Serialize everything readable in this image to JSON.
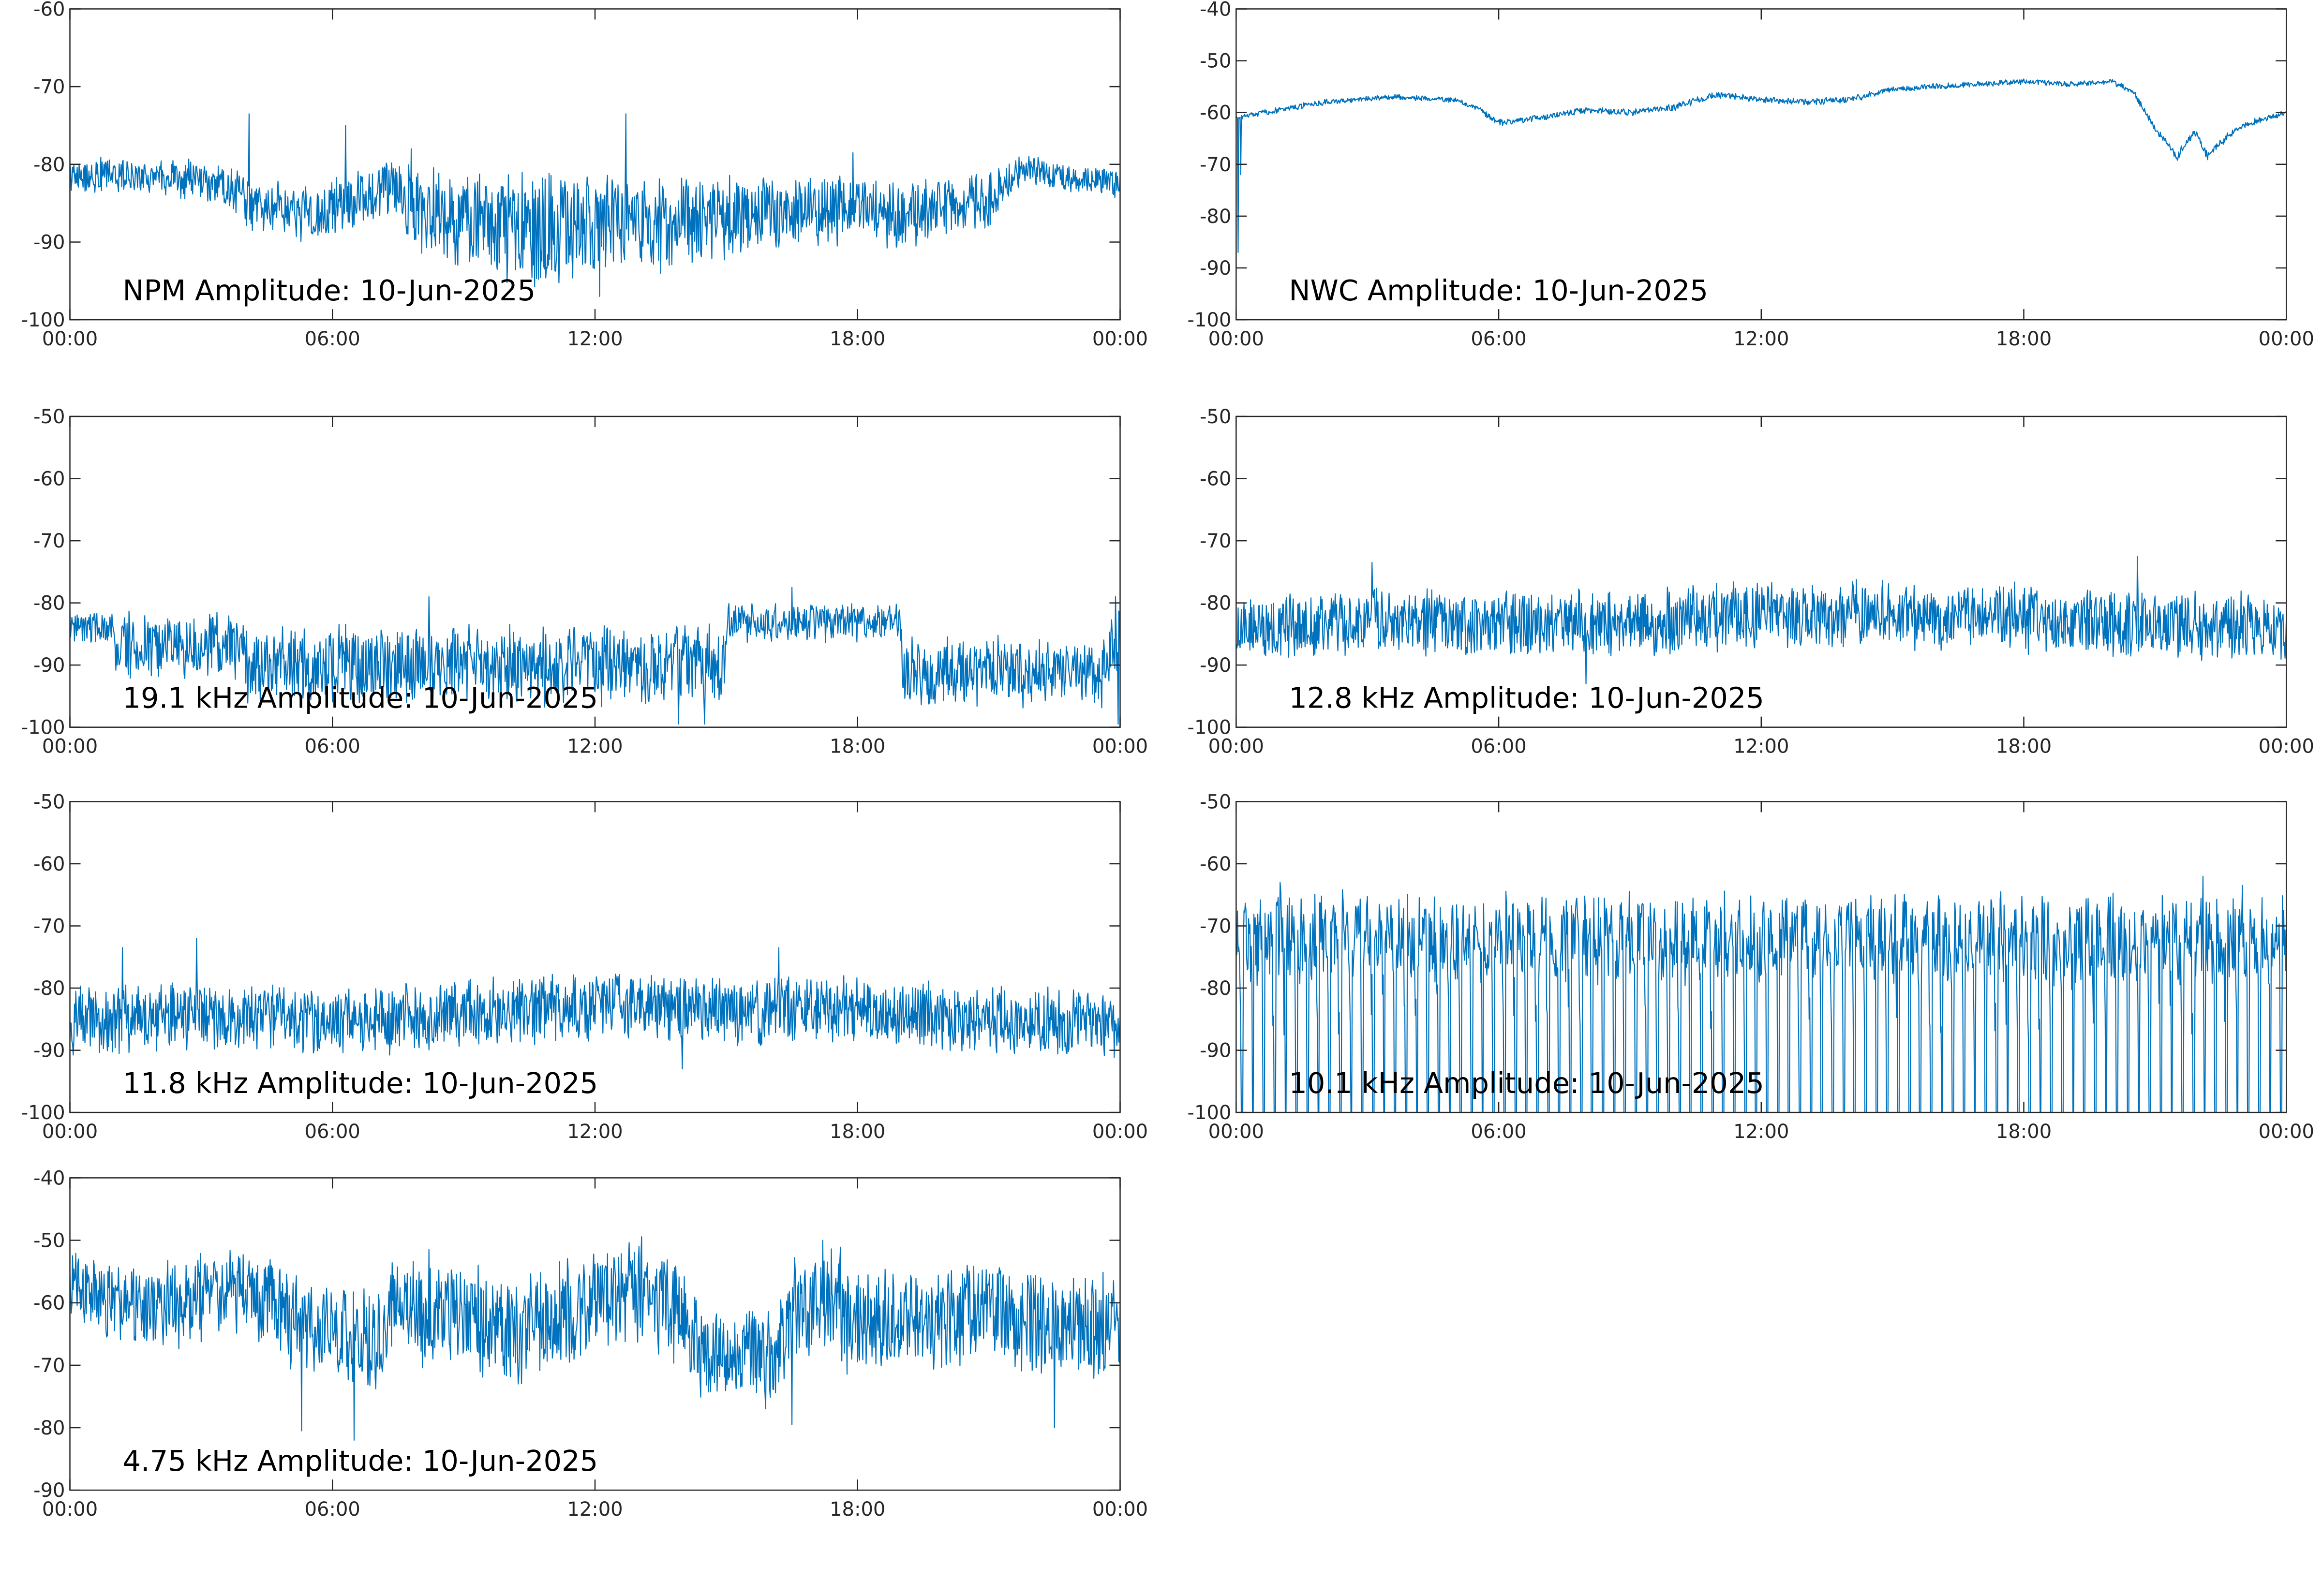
{
  "series_color": "#0072BD",
  "chart_data": [
    {
      "type": "line",
      "title": "NPM Amplitude: 10-Jun-2025",
      "xlabel": "",
      "ylabel": "",
      "x_ticks": [
        "00:00",
        "06:00",
        "12:00",
        "18:00",
        "00:00"
      ],
      "ylim": [
        -100,
        -60
      ],
      "y_ticks": [
        -60,
        -70,
        -80,
        -90,
        -100
      ],
      "grid": false,
      "series": [
        {
          "profile": {
            "x_hours": [
              0,
              2,
              3.5,
              4.2,
              5.5,
              6.5,
              7.3,
              8,
              9,
              10,
              11,
              12,
              13,
              14,
              15,
              16,
              17,
              18,
              19,
              20,
              21,
              21.8,
              22.5,
              23.5,
              24
            ],
            "center": [
              -81.5,
              -81.5,
              -82.5,
              -85.5,
              -86.5,
              -85,
              -82.5,
              -86,
              -87,
              -88,
              -88,
              -87.5,
              -87.5,
              -87.5,
              -87,
              -86,
              -86,
              -85.5,
              -86.5,
              -85.5,
              -84.5,
              -80.5,
              -81.5,
              -82,
              -82.5
            ],
            "spread": [
              2.5,
              2.5,
              3,
              4,
              4,
              4,
              4,
              6,
              7,
              8,
              8,
              8,
              7,
              7,
              6,
              5,
              5,
              5,
              5,
              4,
              4,
              2,
              2,
              2,
              2
            ],
            "spikes": [
              [
                4.1,
                -73.5
              ],
              [
                6.3,
                -75
              ],
              [
                7.8,
                -78
              ],
              [
                12.1,
                -73.5
              ],
              [
                12.7,
                -73.5
              ],
              [
                12.1,
                -97
              ],
              [
                17.9,
                -78.5
              ],
              [
                10.3,
                -93
              ]
            ]
          }
        }
      ]
    },
    {
      "type": "line",
      "title": "NWC Amplitude: 10-Jun-2025",
      "xlabel": "",
      "ylabel": "",
      "x_ticks": [
        "00:00",
        "06:00",
        "12:00",
        "18:00",
        "00:00"
      ],
      "ylim": [
        -100,
        -40
      ],
      "y_ticks": [
        -40,
        -50,
        -60,
        -70,
        -80,
        -90,
        -100
      ],
      "grid": false,
      "series": [
        {
          "profile": {
            "x_hours": [
              0,
              1,
              2,
              3.5,
              5,
              5.5,
              6,
              7,
              8,
              9,
              10,
              11,
              12,
              13,
              14,
              15,
              16,
              17,
              18,
              19,
              20,
              20.5,
              21,
              21.5,
              21.9,
              22.2,
              22.6,
              23,
              24
            ],
            "center": [
              -61,
              -59.5,
              -58,
              -57,
              -57.5,
              -59,
              -62,
              -61,
              -59.5,
              -60,
              -59,
              -56.5,
              -57.5,
              -58,
              -57.5,
              -55.5,
              -55,
              -54.5,
              -54,
              -54.5,
              -54,
              -56,
              -63,
              -68.5,
              -63.5,
              -68.5,
              -65,
              -62.5,
              -60
            ],
            "spread": [
              0.6,
              0.6,
              0.6,
              0.6,
              0.6,
              0.6,
              0.7,
              0.7,
              0.7,
              0.7,
              0.7,
              0.7,
              0.7,
              0.7,
              0.7,
              0.6,
              0.6,
              0.6,
              0.6,
              0.6,
              0.6,
              0.6,
              0.8,
              0.9,
              0.8,
              0.9,
              0.8,
              0.7,
              0.6
            ],
            "spikes": [
              [
                0.05,
                -87
              ],
              [
                0.1,
                -72
              ]
            ]
          }
        }
      ]
    },
    {
      "type": "line",
      "title": "19.1 kHz Amplitude: 10-Jun-2025",
      "xlabel": "",
      "ylabel": "",
      "x_ticks": [
        "00:00",
        "06:00",
        "12:00",
        "18:00",
        "00:00"
      ],
      "ylim": [
        -100,
        -50
      ],
      "y_ticks": [
        -50,
        -60,
        -70,
        -80,
        -90,
        -100
      ],
      "grid": false,
      "series": [
        {
          "profile": {
            "x_hours": [
              0,
              0.95,
              1.05,
              3.95,
              4.05,
              14.95,
              15.05,
              18.95,
              19.05,
              23.7,
              23.8,
              24
            ],
            "center": [
              -84,
              -84,
              -87,
              -87,
              -90,
              -90,
              -83,
              -83,
              -91,
              -91,
              -86,
              -88
            ],
            "spread": [
              3,
              3,
              6,
              6,
              7,
              7,
              3.5,
              3.5,
              6,
              6,
              6,
              8
            ],
            "spikes": [
              [
                13.9,
                -99.5
              ],
              [
                14.5,
                -99.5
              ],
              [
                8.2,
                -79
              ],
              [
                16.5,
                -77.5
              ],
              [
                23.9,
                -79
              ],
              [
                23.95,
                -99.5
              ]
            ]
          }
        }
      ]
    },
    {
      "type": "line",
      "title": "12.8 kHz Amplitude: 10-Jun-2025",
      "xlabel": "",
      "ylabel": "",
      "x_ticks": [
        "00:00",
        "06:00",
        "12:00",
        "18:00",
        "00:00"
      ],
      "ylim": [
        -100,
        -50
      ],
      "y_ticks": [
        -50,
        -60,
        -70,
        -80,
        -90,
        -100
      ],
      "grid": false,
      "series": [
        {
          "profile": {
            "x_hours": [
              0,
              3,
              6,
              9,
              12,
              15,
              18,
              21,
              24
            ],
            "center": [
              -84,
              -83,
              -83.5,
              -83,
              -82,
              -82,
              -82.5,
              -83.5,
              -84
            ],
            "spread": [
              6,
              6,
              6,
              6,
              6,
              6,
              6,
              6,
              6
            ],
            "spikes": [
              [
                20.6,
                -72.5
              ],
              [
                3.1,
                -73.5
              ],
              [
                8,
                -93
              ]
            ]
          }
        }
      ]
    },
    {
      "type": "line",
      "title": "11.8 kHz Amplitude: 10-Jun-2025",
      "xlabel": "",
      "ylabel": "",
      "x_ticks": [
        "00:00",
        "06:00",
        "12:00",
        "18:00",
        "00:00"
      ],
      "ylim": [
        -100,
        -50
      ],
      "y_ticks": [
        -50,
        -60,
        -70,
        -80,
        -90,
        -100
      ],
      "grid": false,
      "series": [
        {
          "profile": {
            "x_hours": [
              0,
              3,
              6,
              9,
              12,
              15,
              18,
              21,
              24
            ],
            "center": [
              -85,
              -84.5,
              -85.5,
              -84,
              -83,
              -83.5,
              -83.5,
              -85,
              -86
            ],
            "spread": [
              6,
              6,
              6,
              6,
              6,
              6,
              6,
              6,
              6
            ],
            "spikes": [
              [
                2.9,
                -72
              ],
              [
                1.2,
                -73.5
              ],
              [
                16.2,
                -73.5
              ],
              [
                14,
                -93
              ]
            ]
          }
        }
      ]
    },
    {
      "type": "line",
      "title": "10.1 kHz Amplitude: 10-Jun-2025",
      "xlabel": "",
      "ylabel": "",
      "x_ticks": [
        "00:00",
        "06:00",
        "12:00",
        "18:00",
        "00:00"
      ],
      "ylim": [
        -100,
        -50
      ],
      "y_ticks": [
        -50,
        -60,
        -70,
        -80,
        -90,
        -100
      ],
      "grid": false,
      "series": [
        {
          "profile": {
            "x_hours": [
              0,
              6,
              12,
              18,
              24
            ],
            "center": [
              -72,
              -72,
              -72,
              -72,
              -72
            ],
            "spread": [
              8,
              8,
              8,
              8,
              8
            ],
            "periodic_drop_hours": 0.25,
            "spikes": [
              [
                22.1,
                -62
              ],
              [
                1,
                -63
              ],
              [
                23,
                -63.5
              ]
            ]
          }
        }
      ]
    },
    {
      "type": "line",
      "title": "4.75 kHz Amplitude: 10-Jun-2025",
      "xlabel": "",
      "ylabel": "",
      "x_ticks": [
        "00:00",
        "06:00",
        "12:00",
        "18:00",
        "00:00"
      ],
      "ylim": [
        -90,
        -40
      ],
      "y_ticks": [
        -40,
        -50,
        -60,
        -70,
        -80,
        -90
      ],
      "grid": false,
      "series": [
        {
          "profile": {
            "x_hours": [
              0,
              1,
              2,
              3,
              4,
              5,
              6,
              7,
              7.5,
              8,
              9,
              10,
              11,
              12,
              13,
              14,
              14.5,
              15,
              16,
              16.5,
              17,
              17.5,
              18,
              19,
              20,
              21,
              22,
              23,
              24
            ],
            "center": [
              -57,
              -60,
              -61,
              -59,
              -58,
              -62,
              -65,
              -66,
              -58,
              -62,
              -62,
              -65,
              -63,
              -60,
              -58,
              -63,
              -68,
              -68,
              -69,
              -62,
              -60,
              -58,
              -65,
              -62,
              -63,
              -61,
              -63,
              -64,
              -64
            ],
            "spread": [
              6,
              7,
              8,
              8,
              8,
              9,
              9,
              9,
              8,
              9,
              9,
              10,
              10,
              9,
              9,
              9,
              8,
              8,
              9,
              10,
              10,
              10,
              10,
              9,
              9,
              9,
              9,
              9,
              9
            ],
            "spikes": [
              [
                17.2,
                -50
              ],
              [
                8.2,
                -51.5
              ],
              [
                13,
                -51
              ],
              [
                5.3,
                -80.5
              ],
              [
                6.5,
                -82
              ],
              [
                16.5,
                -79.5
              ],
              [
                22.5,
                -80
              ]
            ]
          }
        }
      ]
    }
  ]
}
